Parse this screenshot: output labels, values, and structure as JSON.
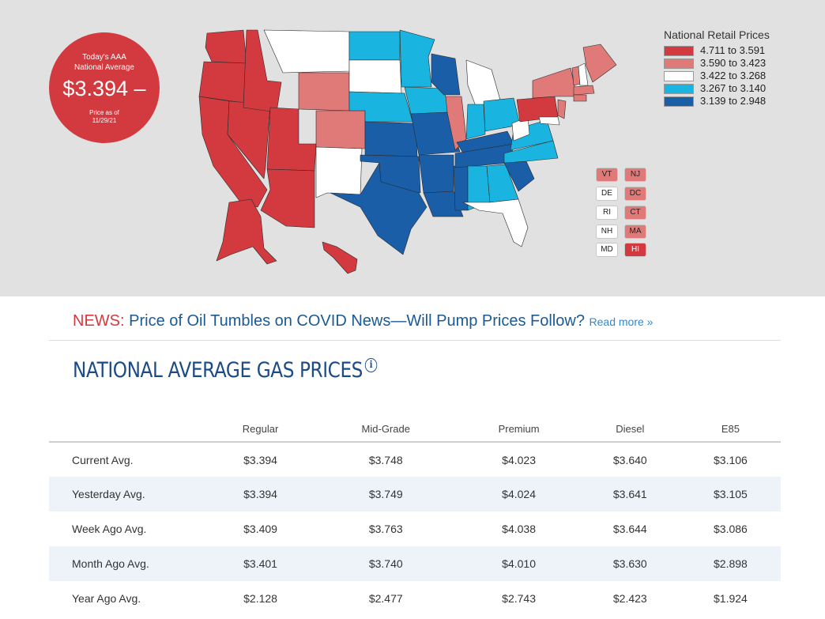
{
  "badge": {
    "line1": "Today's AAA",
    "line2": "National Average",
    "price": "$3.394",
    "trend": "–",
    "asof_label": "Price as of",
    "date": "11/29/21"
  },
  "legend": {
    "title": "National Retail Prices",
    "items": [
      {
        "range": "4.711 to 3.591",
        "color": "#d33a3f"
      },
      {
        "range": "3.590 to 3.423",
        "color": "#e07a79"
      },
      {
        "range": "3.422 to 3.268",
        "color": "#ffffff"
      },
      {
        "range": "3.267 to 3.140",
        "color": "#19b5e0"
      },
      {
        "range": "3.139 to 2.948",
        "color": "#1a5ea8"
      }
    ]
  },
  "small_states": [
    {
      "code": "VT",
      "color": "#e07a79"
    },
    {
      "code": "NJ",
      "color": "#e07a79"
    },
    {
      "code": "DE",
      "color": "#ffffff"
    },
    {
      "code": "DC",
      "color": "#e07a79"
    },
    {
      "code": "RI",
      "color": "#ffffff"
    },
    {
      "code": "CT",
      "color": "#e07a79"
    },
    {
      "code": "NH",
      "color": "#ffffff"
    },
    {
      "code": "MA",
      "color": "#e07a79"
    },
    {
      "code": "MD",
      "color": "#ffffff"
    },
    {
      "code": "HI",
      "color": "#d33a3f"
    }
  ],
  "news": {
    "label": "NEWS:",
    "title": "Price of Oil Tumbles on COVID News—Will Pump Prices Follow?",
    "more": "Read more »"
  },
  "section": {
    "heading": "NATIONAL AVERAGE GAS PRICES",
    "info_icon": "info-icon"
  },
  "table": {
    "headers": [
      "",
      "Regular",
      "Mid-Grade",
      "Premium",
      "Diesel",
      "E85"
    ],
    "rows": [
      {
        "label": "Current Avg.",
        "values": [
          "$3.394",
          "$3.748",
          "$4.023",
          "$3.640",
          "$3.106"
        ]
      },
      {
        "label": "Yesterday Avg.",
        "values": [
          "$3.394",
          "$3.749",
          "$4.024",
          "$3.641",
          "$3.105"
        ]
      },
      {
        "label": "Week Ago Avg.",
        "values": [
          "$3.409",
          "$3.763",
          "$4.038",
          "$3.644",
          "$3.086"
        ]
      },
      {
        "label": "Month Ago Avg.",
        "values": [
          "$3.401",
          "$3.740",
          "$4.010",
          "$3.630",
          "$2.898"
        ]
      },
      {
        "label": "Year Ago Avg.",
        "values": [
          "$2.128",
          "$2.477",
          "$2.743",
          "$2.423",
          "$1.924"
        ]
      }
    ]
  }
}
